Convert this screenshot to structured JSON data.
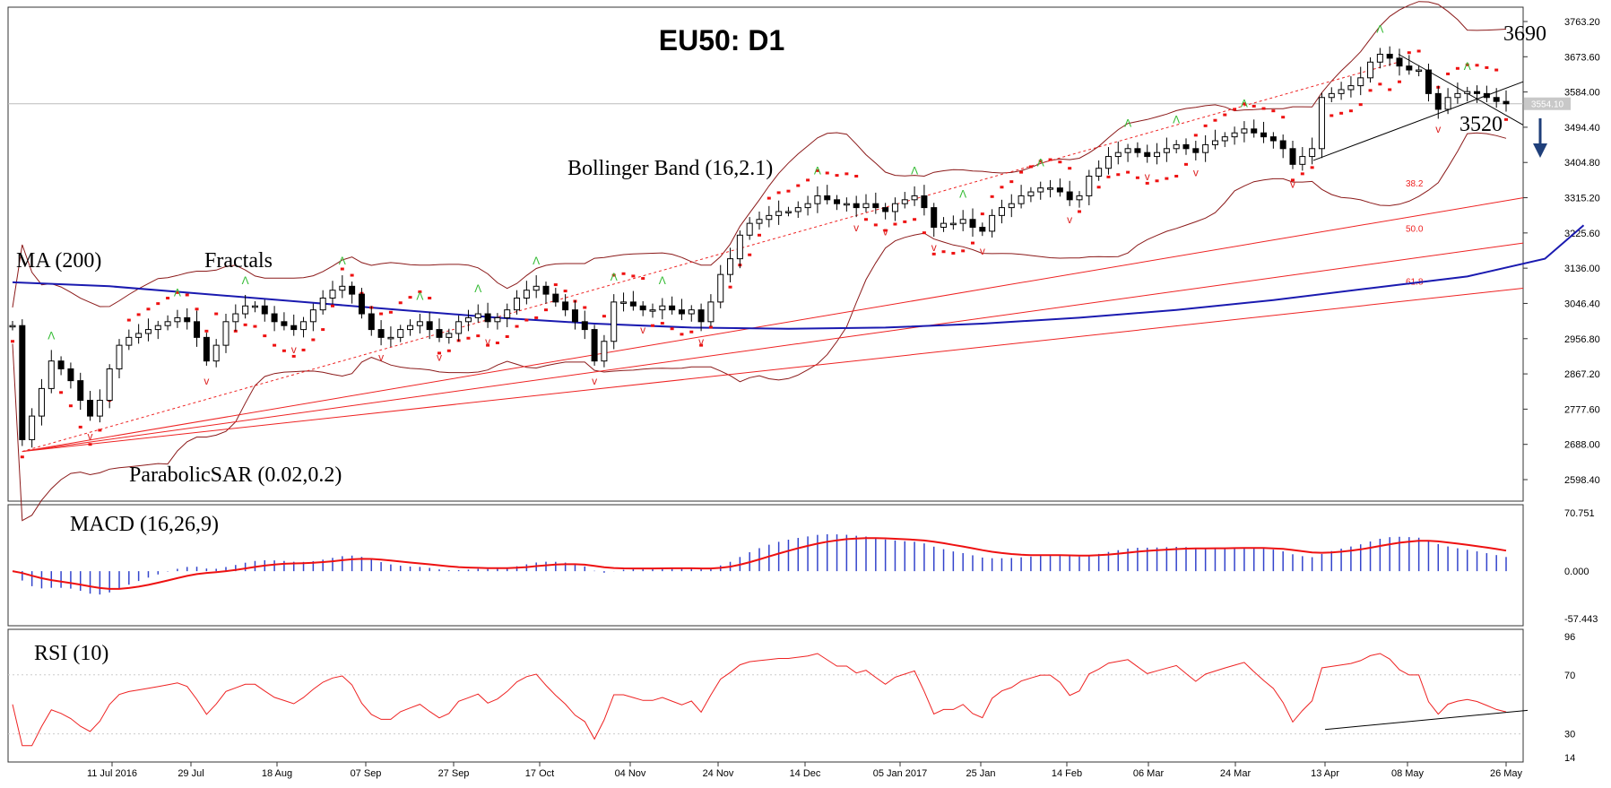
{
  "title": "EU50: D1",
  "chart_data": {
    "type": "candlestick",
    "symbol": "EU50",
    "timeframe": "D1",
    "price_axis": {
      "min": 2598.4,
      "max": 3763.2,
      "ticks": [
        "3763.20",
        "3673.60",
        "3584.00",
        "3494.40",
        "3404.80",
        "3315.20",
        "3225.60",
        "3136.00",
        "3046.40",
        "2956.80",
        "2867.20",
        "2777.60",
        "2688.00",
        "2598.40"
      ],
      "current_price_label": "3554.10",
      "current_price": 3554.1
    },
    "x_axis": {
      "ticks": [
        "11 Jul 2016",
        "29 Jul",
        "18 Aug",
        "07 Sep",
        "27 Sep",
        "17 Oct",
        "04 Nov",
        "24 Nov",
        "14 Dec",
        "05 Jan 2017",
        "25 Jan",
        "14 Feb",
        "06 Mar",
        "24 Mar",
        "13 Apr",
        "08 May",
        "26 May"
      ]
    },
    "closes": [
      2990,
      2700,
      2760,
      2830,
      2900,
      2880,
      2850,
      2800,
      2760,
      2800,
      2880,
      2940,
      2960,
      2970,
      2980,
      2990,
      3000,
      3010,
      3000,
      2960,
      2900,
      2940,
      3000,
      3020,
      3040,
      3040,
      3020,
      3000,
      2990,
      2980,
      3000,
      3030,
      3060,
      3080,
      3090,
      3070,
      3020,
      2980,
      2960,
      2960,
      2980,
      2990,
      3000,
      2980,
      2960,
      2970,
      3000,
      3010,
      3020,
      3000,
      3010,
      3030,
      3060,
      3080,
      3090,
      3070,
      3050,
      3030,
      3000,
      2980,
      2900,
      2950,
      3050,
      3050,
      3040,
      3030,
      3030,
      3040,
      3030,
      3020,
      3030,
      3000,
      3050,
      3120,
      3160,
      3220,
      3250,
      3260,
      3270,
      3280,
      3280,
      3290,
      3300,
      3320,
      3310,
      3300,
      3300,
      3290,
      3300,
      3290,
      3280,
      3300,
      3310,
      3320,
      3290,
      3240,
      3250,
      3250,
      3260,
      3240,
      3230,
      3270,
      3290,
      3300,
      3320,
      3330,
      3340,
      3340,
      3330,
      3310,
      3320,
      3370,
      3390,
      3420,
      3430,
      3440,
      3430,
      3420,
      3430,
      3440,
      3450,
      3440,
      3430,
      3450,
      3460,
      3470,
      3480,
      3490,
      3480,
      3470,
      3460,
      3440,
      3400,
      3420,
      3440,
      3570,
      3580,
      3590,
      3600,
      3620,
      3660,
      3680,
      3670,
      3650,
      3640,
      3640,
      3580,
      3540,
      3570,
      3580,
      3585,
      3580,
      3570,
      3560,
      3554
    ],
    "ma200": {
      "label": "MA (200)",
      "points": [
        [
          0,
          3100
        ],
        [
          10,
          3090
        ],
        [
          20,
          3070
        ],
        [
          30,
          3050
        ],
        [
          40,
          3030
        ],
        [
          50,
          3010
        ],
        [
          60,
          2995
        ],
        [
          70,
          2985
        ],
        [
          80,
          2982
        ],
        [
          90,
          2985
        ],
        [
          100,
          2995
        ],
        [
          110,
          3010
        ],
        [
          120,
          3030
        ],
        [
          130,
          3055
        ],
        [
          140,
          3085
        ],
        [
          150,
          3115
        ],
        [
          158,
          3160
        ],
        [
          162,
          3245
        ]
      ]
    },
    "macd": {
      "label": "MACD (16,26,9)",
      "ticks": [
        "70.751",
        "0.000",
        "-57.443"
      ],
      "min": -57.443,
      "max": 70.751
    },
    "rsi": {
      "label": "RSI (10)",
      "ticks": [
        "96",
        "70",
        "30",
        "14"
      ],
      "min": 14,
      "max": 96
    },
    "fibonacci_levels": [
      "38.2",
      "50.0",
      "61.8"
    ],
    "annotations": {
      "bollinger": "Bollinger Band (16,2.1)",
      "fractals": "Fractals",
      "sar": "ParabolicSAR (0.02,0.2)",
      "resistance": "3690",
      "support": "3520"
    },
    "colors": {
      "bullish_fractal": "#33bb33",
      "bearish_fractal": "#dd2222",
      "ma": "#1a1ab0",
      "sar": "#ee1111",
      "macd_hist": "#3344cc",
      "signal": "#ee1111",
      "rsi": "#ee2222",
      "arrow": "#1f3f7a"
    }
  }
}
